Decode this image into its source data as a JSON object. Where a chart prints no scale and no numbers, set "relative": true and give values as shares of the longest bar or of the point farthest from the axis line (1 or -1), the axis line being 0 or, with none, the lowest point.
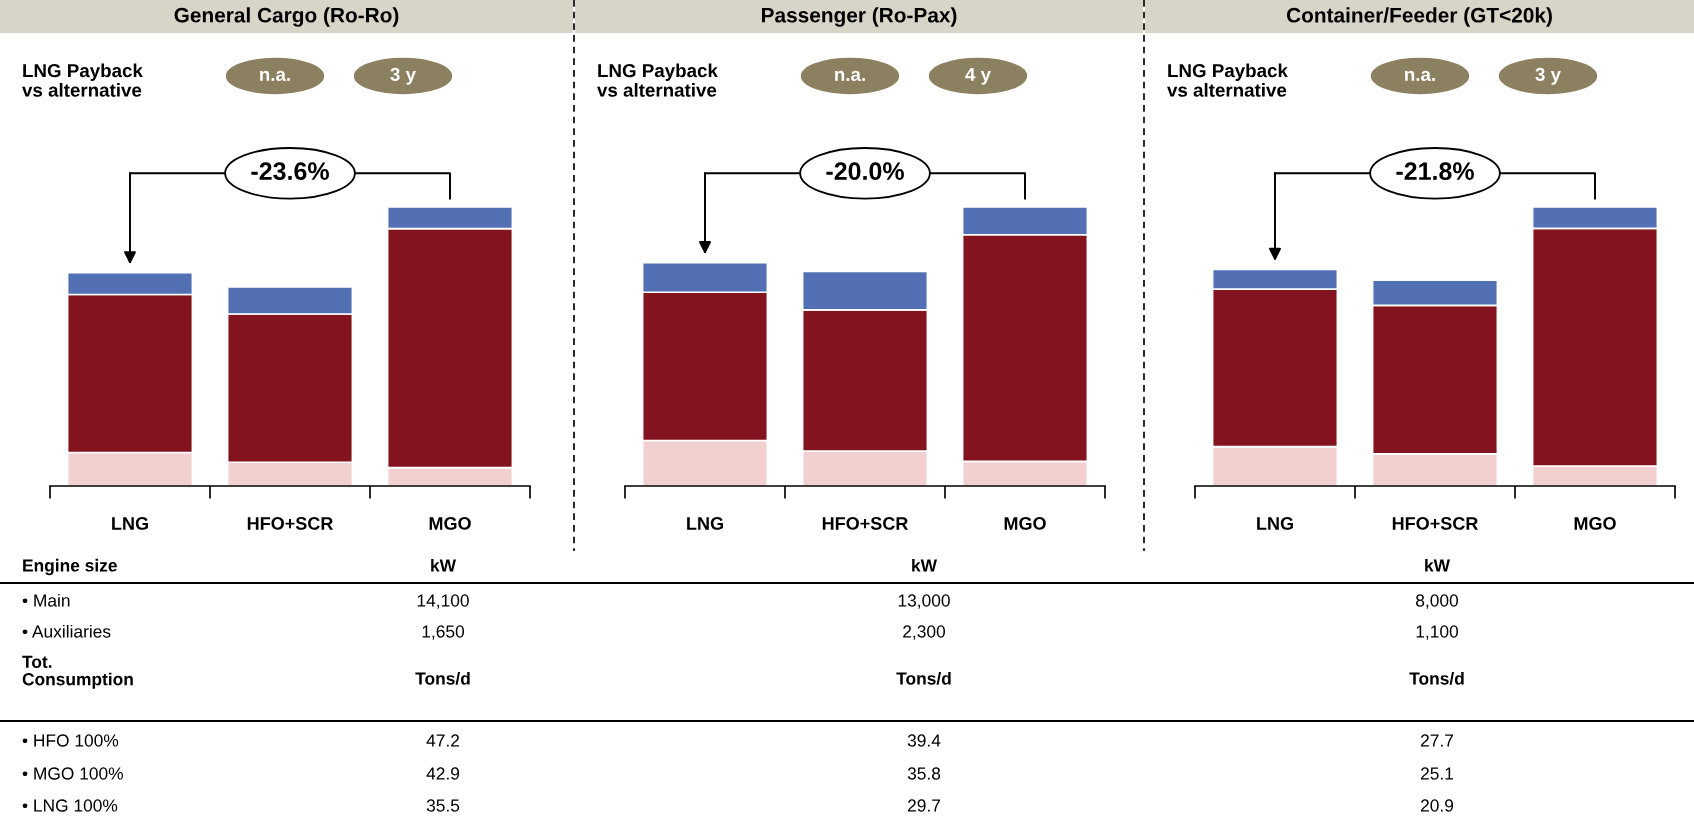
{
  "chart_data": [
    {
      "type": "bar",
      "title": "General Cargo (Ro-Ro)",
      "categories": [
        "LNG",
        "HFO+SCR",
        "MGO"
      ],
      "stacked": true,
      "relative": true,
      "series": [
        {
          "color": "#f2d0d0",
          "values": [
            0.12,
            0.085,
            0.066
          ]
        },
        {
          "color": "#83141f",
          "values": [
            0.566,
            0.531,
            0.856
          ]
        },
        {
          "color": "#5470b5",
          "values": [
            0.078,
            0.097,
            0.078
          ]
        }
      ],
      "annotations": [
        "LNG Payback\nvs alternative",
        "n.a.",
        "3 y",
        "-23.6%"
      ]
    },
    {
      "type": "bar",
      "title": "Passenger (Ro-Pax)",
      "categories": [
        "LNG",
        "HFO+SCR",
        "MGO"
      ],
      "stacked": true,
      "relative": true,
      "series": [
        {
          "color": "#f2d0d0",
          "values": [
            0.163,
            0.125,
            0.088
          ]
        },
        {
          "color": "#83141f",
          "values": [
            0.531,
            0.506,
            0.812
          ]
        },
        {
          "color": "#5470b5",
          "values": [
            0.106,
            0.138,
            0.1
          ]
        }
      ],
      "annotations": [
        "LNG Payback\nvs alternative",
        "n.a.",
        "4 y",
        "-20.0%"
      ]
    },
    {
      "type": "bar",
      "title": "Container/Feeder (GT<20k)",
      "categories": [
        "LNG",
        "HFO+SCR",
        "MGO"
      ],
      "stacked": true,
      "relative": true,
      "series": [
        {
          "color": "#f2d0d0",
          "values": [
            0.141,
            0.115,
            0.071
          ]
        },
        {
          "color": "#83141f",
          "values": [
            0.564,
            0.532,
            0.852
          ]
        },
        {
          "color": "#5470b5",
          "values": [
            0.071,
            0.09,
            0.077
          ]
        }
      ],
      "annotations": [
        "LNG Payback\nvs alternative",
        "n.a.",
        "3 y",
        "-21.8%"
      ]
    },
    {
      "type": "other",
      "annotations": [
        "Engine size",
        "kW",
        "kW",
        "kW",
        "• Main",
        "14,100",
        "13,000",
        "8,000",
        "• Auxiliaries",
        "1,650",
        "2,300",
        "1,100",
        "Tot.\nConsumption",
        "Tons/d",
        "Tons/d",
        "Tons/d",
        "• HFO 100%",
        "47.2",
        "39.4",
        "27.7",
        "• MGO 100%",
        "42.9",
        "35.8",
        "25.1",
        "• LNG 100%",
        "35.5",
        "29.7",
        "20.9"
      ]
    }
  ]
}
